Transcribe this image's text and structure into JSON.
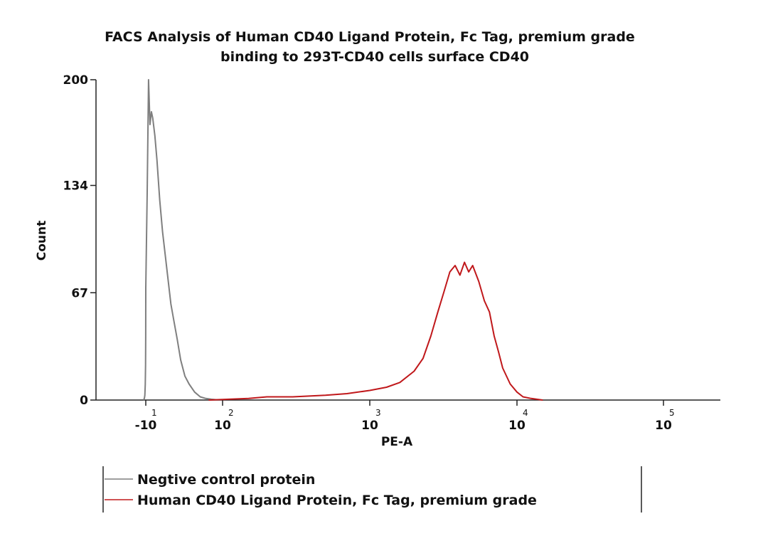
{
  "chart_data": {
    "type": "line",
    "title": [
      "FACS Analysis of Human CD40 Ligand Protein, Fc Tag, premium grade",
      "binding to 293T-CD40 cells surface CD40"
    ],
    "xlabel": "PE-A",
    "ylabel": "Count",
    "xscale": "biexponential",
    "ylim": [
      0,
      200
    ],
    "yticks": [
      {
        "value": 0,
        "label": "0"
      },
      {
        "value": 67,
        "label": "67"
      },
      {
        "value": 134,
        "label": "134"
      },
      {
        "value": 200,
        "label": "200"
      }
    ],
    "xticks": [
      {
        "value": -10,
        "base": "-10",
        "exp": "1"
      },
      {
        "value": 100,
        "base": "10",
        "exp": "2"
      },
      {
        "value": 1000,
        "base": "10",
        "exp": "3"
      },
      {
        "value": 10000,
        "base": "10",
        "exp": "4"
      },
      {
        "value": 100000,
        "base": "10",
        "exp": "5"
      }
    ],
    "series": [
      {
        "name": "Negtive control protein",
        "color": "#7f7f7f",
        "x": [
          -60,
          -40,
          -30,
          -20,
          -15,
          -12,
          -10,
          -8,
          -6,
          -4,
          -2,
          0,
          3,
          6,
          10,
          14,
          18,
          22,
          26,
          30,
          35,
          40,
          46,
          52,
          60,
          68,
          76,
          84,
          95
        ],
        "y": [
          0,
          1,
          3,
          10,
          22,
          40,
          70,
          130,
          200,
          172,
          180,
          176,
          165,
          150,
          125,
          105,
          90,
          75,
          60,
          50,
          38,
          25,
          15,
          10,
          5,
          2,
          1,
          0.5,
          0
        ]
      },
      {
        "name": "Human CD40 Ligand Protein, Fc Tag, premium grade",
        "color": "#c0181b",
        "x": [
          80,
          150,
          200,
          300,
          500,
          700,
          1000,
          1300,
          1600,
          2000,
          2300,
          2600,
          2900,
          3200,
          3500,
          3800,
          4100,
          4400,
          4700,
          5000,
          5500,
          6000,
          6500,
          7000,
          7500,
          8000,
          9000,
          10000,
          11000,
          12500,
          15000
        ],
        "y": [
          0,
          1,
          2,
          2,
          3,
          4,
          6,
          8,
          11,
          18,
          26,
          40,
          55,
          68,
          80,
          84,
          78,
          86,
          80,
          84,
          74,
          62,
          55,
          40,
          30,
          20,
          10,
          5,
          2,
          1,
          0
        ]
      }
    ],
    "legend": {
      "placement": "bottom-left",
      "entries": [
        {
          "label": "Negtive control protein",
          "color": "#7f7f7f"
        },
        {
          "label": "Human CD40 Ligand Protein, Fc Tag, premium grade",
          "color": "#c0181b"
        }
      ]
    }
  }
}
